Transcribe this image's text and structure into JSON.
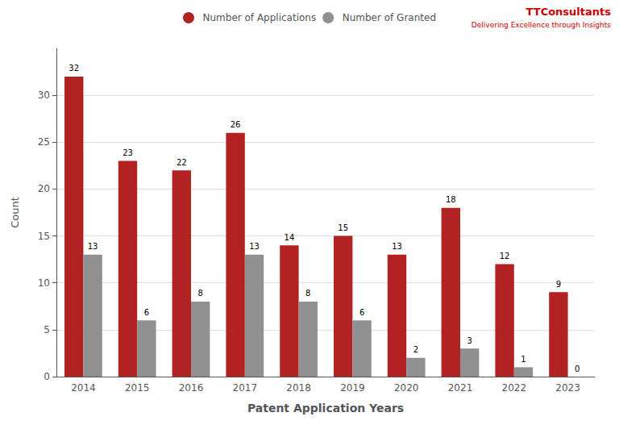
{
  "chart_data": {
    "type": "bar",
    "categories": [
      "2014",
      "2015",
      "2016",
      "2017",
      "2018",
      "2019",
      "2020",
      "2021",
      "2022",
      "2023"
    ],
    "series": [
      {
        "name": "Number of Applications",
        "color": "#B22222",
        "values": [
          32,
          23,
          22,
          26,
          14,
          15,
          13,
          18,
          12,
          9
        ]
      },
      {
        "name": "Number of Granted",
        "color": "#909090",
        "values": [
          13,
          6,
          8,
          13,
          8,
          6,
          2,
          3,
          1,
          0
        ]
      }
    ],
    "xlabel": "Patent Application Years",
    "ylabel": "Count",
    "ylim": [
      0,
      35
    ],
    "yticks": [
      0,
      5,
      10,
      15,
      20,
      25,
      30
    ],
    "grid": true,
    "legend": "top",
    "data_labels": true,
    "annotations": [
      {
        "text": "TTConsultants",
        "color": "#CC0000"
      },
      {
        "text": "Delivering Excellence through Insights",
        "color": "#CC0000"
      }
    ]
  }
}
